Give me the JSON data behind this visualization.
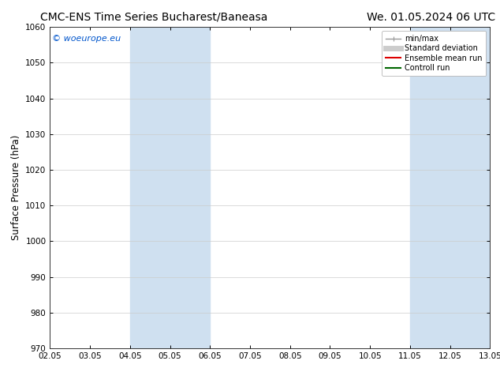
{
  "title_left": "CMC-ENS Time Series Bucharest/Baneasa",
  "title_right": "We. 01.05.2024 06 UTC",
  "ylabel": "Surface Pressure (hPa)",
  "ylim": [
    970,
    1060
  ],
  "yticks": [
    970,
    980,
    990,
    1000,
    1010,
    1020,
    1030,
    1040,
    1050,
    1060
  ],
  "xtick_labels": [
    "02.05",
    "03.05",
    "04.05",
    "05.05",
    "06.05",
    "07.05",
    "08.05",
    "09.05",
    "10.05",
    "11.05",
    "12.05",
    "13.05"
  ],
  "shaded_bands": [
    {
      "xstart": 2,
      "xend": 4
    },
    {
      "xstart": 9,
      "xend": 11
    }
  ],
  "shade_color": "#cfe0f0",
  "watermark_text": "© woeurope.eu",
  "watermark_color": "#0055cc",
  "legend_entries": [
    {
      "label": "min/max",
      "color": "#999999",
      "linestyle": "-",
      "linewidth": 1.0
    },
    {
      "label": "Standard deviation",
      "color": "#cccccc",
      "linestyle": "-",
      "linewidth": 5
    },
    {
      "label": "Ensemble mean run",
      "color": "#dd0000",
      "linestyle": "-",
      "linewidth": 1.5
    },
    {
      "label": "Controll run",
      "color": "#006600",
      "linestyle": "-",
      "linewidth": 1.5
    }
  ],
  "background_color": "#ffffff",
  "grid_color": "#cccccc",
  "title_fontsize": 10,
  "tick_fontsize": 7.5,
  "ylabel_fontsize": 8.5,
  "watermark_fontsize": 8
}
